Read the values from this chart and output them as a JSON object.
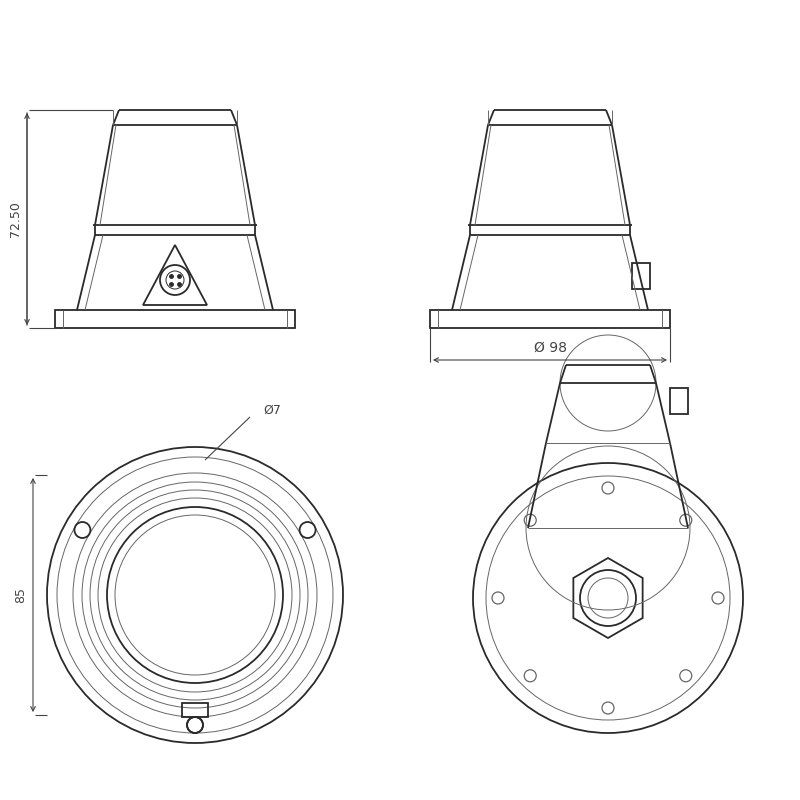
{
  "bg_color": "#ffffff",
  "line_color": "#2a2a2a",
  "dim_color": "#444444",
  "thin_color": "#666666",
  "lw_main": 1.3,
  "lw_thin": 0.7,
  "lw_dim": 0.8,
  "font_size": 9,
  "dim_72_50": "72.50",
  "dim_98": "Ø 98",
  "dim_7": "Ø7",
  "dim_85": "85"
}
